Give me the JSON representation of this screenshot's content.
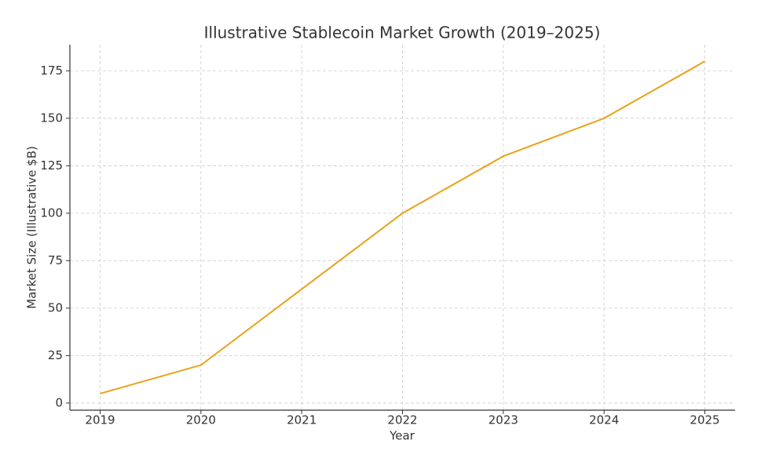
{
  "chart_data": {
    "type": "line",
    "title": "Illustrative Stablecoin Market Growth (2019–2025)",
    "x_label": "Year",
    "y_label": "Market Size (Illustrative $B)",
    "x": [
      2019,
      2020,
      2021,
      2022,
      2023,
      2024,
      2025
    ],
    "series": [
      {
        "name": "Market Size",
        "color": "#e8a21a",
        "values": [
          5,
          20,
          60,
          100,
          130,
          150,
          180
        ]
      }
    ],
    "xlim": [
      2018.7,
      2025.3
    ],
    "xticks": [
      2019,
      2020,
      2021,
      2022,
      2023,
      2024,
      2025
    ],
    "ylim": [
      -3.75,
      188.75
    ],
    "yticks": [
      0,
      25,
      50,
      75,
      100,
      125,
      150,
      175
    ],
    "grid": true
  }
}
